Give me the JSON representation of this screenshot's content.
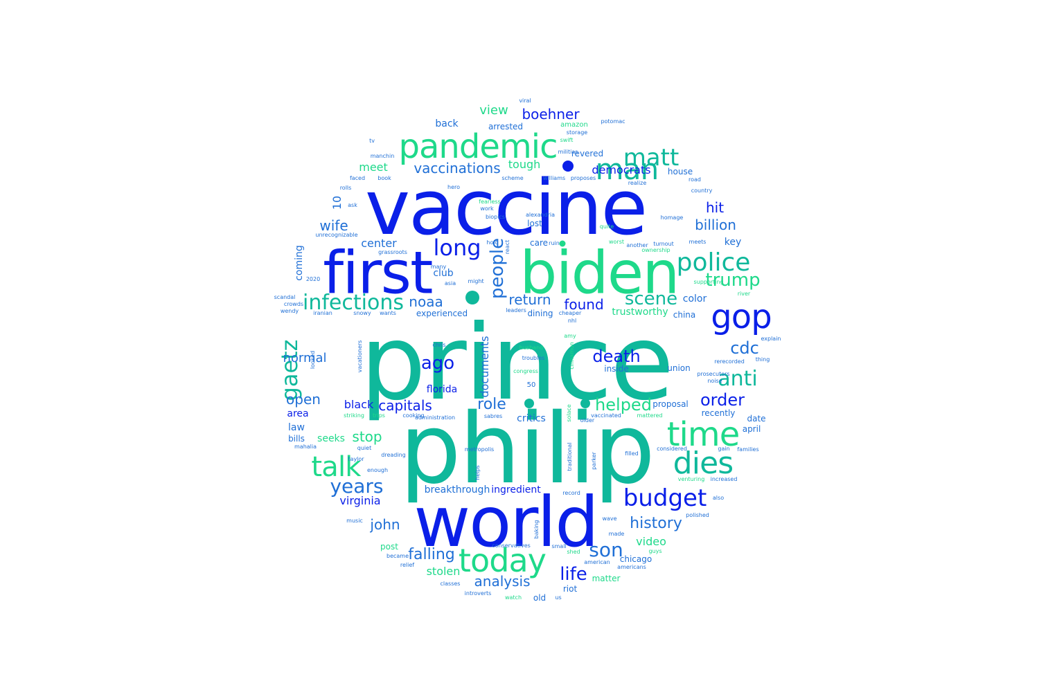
{
  "colors": {
    "blue": "#0a1fe8",
    "teal": "#0fb89b",
    "mid": "#1f6fd6",
    "green": "#1ed98a"
  },
  "words": [
    {
      "text": "prince",
      "color": "teal"
    },
    {
      "text": "philip",
      "color": "teal"
    },
    {
      "text": "vaccine",
      "color": "blue"
    },
    {
      "text": "world",
      "color": "blue"
    },
    {
      "text": "biden",
      "color": "green"
    },
    {
      "text": "first",
      "color": "blue"
    },
    {
      "text": "pandemic",
      "color": "green"
    },
    {
      "text": "gop",
      "color": "blue"
    },
    {
      "text": "time",
      "color": "green"
    },
    {
      "text": "today",
      "color": "green"
    },
    {
      "text": "dies",
      "color": "teal"
    },
    {
      "text": "man",
      "color": "teal"
    },
    {
      "text": "matt",
      "color": "teal"
    },
    {
      "text": "police",
      "color": "teal"
    },
    {
      "text": "talk",
      "color": "green"
    },
    {
      "text": "budget",
      "color": "blue"
    },
    {
      "text": "long",
      "color": "blue"
    },
    {
      "text": "infections",
      "color": "teal"
    },
    {
      "text": "gaetz",
      "color": "teal"
    },
    {
      "text": "anti",
      "color": "teal"
    },
    {
      "text": "trump",
      "color": "green"
    },
    {
      "text": "people",
      "color": "mid"
    },
    {
      "text": "years",
      "color": "mid"
    },
    {
      "text": "son",
      "color": "mid"
    },
    {
      "text": "life",
      "color": "blue"
    },
    {
      "text": "ago",
      "color": "blue"
    },
    {
      "text": "scene",
      "color": "teal"
    },
    {
      "text": "cdc",
      "color": "mid"
    },
    {
      "text": "order",
      "color": "blue"
    },
    {
      "text": "death",
      "color": "blue"
    },
    {
      "text": "vaccinations",
      "color": "mid"
    },
    {
      "text": "boehner",
      "color": "blue"
    },
    {
      "text": "history",
      "color": "mid"
    },
    {
      "text": "helped",
      "color": "green"
    },
    {
      "text": "role",
      "color": "mid"
    },
    {
      "text": "capitals",
      "color": "blue"
    },
    {
      "text": "found",
      "color": "blue"
    },
    {
      "text": "return",
      "color": "mid"
    },
    {
      "text": "noaa",
      "color": "mid"
    },
    {
      "text": "analysis",
      "color": "mid"
    },
    {
      "text": "falling",
      "color": "mid"
    },
    {
      "text": "john",
      "color": "mid"
    },
    {
      "text": "open",
      "color": "mid"
    },
    {
      "text": "normal",
      "color": "mid"
    },
    {
      "text": "billion",
      "color": "mid"
    },
    {
      "text": "hit",
      "color": "blue"
    },
    {
      "text": "wife",
      "color": "mid"
    },
    {
      "text": "view",
      "color": "green"
    },
    {
      "text": "stop",
      "color": "green"
    },
    {
      "text": "documents",
      "color": "mid"
    },
    {
      "text": "democrats",
      "color": "blue"
    },
    {
      "text": "video",
      "color": "green"
    },
    {
      "text": "stolen",
      "color": "green"
    },
    {
      "text": "virginia",
      "color": "blue"
    },
    {
      "text": "black",
      "color": "blue"
    },
    {
      "text": "tough",
      "color": "green"
    },
    {
      "text": "10",
      "color": "mid"
    },
    {
      "text": "meet",
      "color": "green"
    },
    {
      "text": "center",
      "color": "mid"
    },
    {
      "text": "club",
      "color": "mid"
    },
    {
      "text": "coming",
      "color": "mid"
    },
    {
      "text": "area",
      "color": "blue"
    },
    {
      "text": "law",
      "color": "mid"
    },
    {
      "text": "seeks",
      "color": "green"
    },
    {
      "text": "florida",
      "color": "blue"
    },
    {
      "text": "breakthrough",
      "color": "mid"
    },
    {
      "text": "ingredient",
      "color": "blue"
    },
    {
      "text": "inside",
      "color": "mid"
    },
    {
      "text": "union",
      "color": "mid"
    },
    {
      "text": "proposal",
      "color": "mid"
    },
    {
      "text": "recently",
      "color": "mid"
    },
    {
      "text": "critics",
      "color": "mid"
    },
    {
      "text": "color",
      "color": "mid"
    },
    {
      "text": "key",
      "color": "mid"
    },
    {
      "text": "back",
      "color": "mid"
    },
    {
      "text": "house",
      "color": "mid"
    },
    {
      "text": "arrested",
      "color": "mid"
    },
    {
      "text": "revered",
      "color": "mid"
    },
    {
      "text": "experienced",
      "color": "mid"
    },
    {
      "text": "dining",
      "color": "mid"
    },
    {
      "text": "trustworthy",
      "color": "green"
    },
    {
      "text": "lost",
      "color": "mid"
    },
    {
      "text": "care",
      "color": "mid"
    },
    {
      "text": "old",
      "color": "mid"
    },
    {
      "text": "chicago",
      "color": "mid"
    },
    {
      "text": "riot",
      "color": "mid"
    },
    {
      "text": "matter",
      "color": "green"
    },
    {
      "text": "china",
      "color": "mid"
    },
    {
      "text": "april",
      "color": "mid"
    },
    {
      "text": "date",
      "color": "mid"
    },
    {
      "text": "bills",
      "color": "mid"
    },
    {
      "text": "post",
      "color": "green"
    },
    {
      "text": "amazon",
      "color": "green"
    },
    {
      "text": "50",
      "color": "mid"
    },
    {
      "text": "alexandria",
      "color": "mid"
    },
    {
      "text": "biopics",
      "color": "mid"
    },
    {
      "text": "potomac",
      "color": "mid"
    },
    {
      "text": "viral",
      "color": "mid"
    },
    {
      "text": "storage",
      "color": "mid"
    },
    {
      "text": "swift",
      "color": "green"
    },
    {
      "text": "militias",
      "color": "mid"
    },
    {
      "text": "manchin",
      "color": "mid"
    },
    {
      "text": "book",
      "color": "mid"
    },
    {
      "text": "faced",
      "color": "mid"
    },
    {
      "text": "tv",
      "color": "mid"
    },
    {
      "text": "rolls",
      "color": "mid"
    },
    {
      "text": "hero",
      "color": "mid"
    },
    {
      "text": "scheme",
      "color": "mid"
    },
    {
      "text": "williams",
      "color": "mid"
    },
    {
      "text": "proposes",
      "color": "mid"
    },
    {
      "text": "realize",
      "color": "mid"
    },
    {
      "text": "road",
      "color": "mid"
    },
    {
      "text": "country",
      "color": "mid"
    },
    {
      "text": "fearless",
      "color": "green"
    },
    {
      "text": "work",
      "color": "mid"
    },
    {
      "text": "ask",
      "color": "mid"
    },
    {
      "text": "quite",
      "color": "green"
    },
    {
      "text": "homage",
      "color": "mid"
    },
    {
      "text": "unrecognizable",
      "color": "mid"
    },
    {
      "text": "hold",
      "color": "mid"
    },
    {
      "text": "ruin",
      "color": "mid"
    },
    {
      "text": "worst",
      "color": "green"
    },
    {
      "text": "another",
      "color": "mid"
    },
    {
      "text": "turnout",
      "color": "mid"
    },
    {
      "text": "meets",
      "color": "mid"
    },
    {
      "text": "ownership",
      "color": "green"
    },
    {
      "text": "react",
      "color": "mid"
    },
    {
      "text": "grassroots",
      "color": "mid"
    },
    {
      "text": "many",
      "color": "mid"
    },
    {
      "text": "2020",
      "color": "mid"
    },
    {
      "text": "asia",
      "color": "mid"
    },
    {
      "text": "might",
      "color": "mid"
    },
    {
      "text": "supporting",
      "color": "green"
    },
    {
      "text": "river",
      "color": "green"
    },
    {
      "text": "scandal",
      "color": "mid"
    },
    {
      "text": "crowds",
      "color": "mid"
    },
    {
      "text": "wendy",
      "color": "mid"
    },
    {
      "text": "iranian",
      "color": "mid"
    },
    {
      "text": "snowy",
      "color": "mid"
    },
    {
      "text": "wants",
      "color": "mid"
    },
    {
      "text": "leaders",
      "color": "mid"
    },
    {
      "text": "cheaper",
      "color": "mid"
    },
    {
      "text": "nhl",
      "color": "mid"
    },
    {
      "text": "amy",
      "color": "green"
    },
    {
      "text": "explain",
      "color": "mid"
    },
    {
      "text": "chris",
      "color": "mid"
    },
    {
      "text": "husband",
      "color": "green"
    },
    {
      "text": "troubles",
      "color": "mid"
    },
    {
      "text": "cinnamon",
      "color": "green"
    },
    {
      "text": "prosecutors",
      "color": "mid"
    },
    {
      "text": "rerecorded",
      "color": "mid"
    },
    {
      "text": "thing",
      "color": "mid"
    },
    {
      "text": "noise",
      "color": "mid"
    },
    {
      "text": "congress",
      "color": "green"
    },
    {
      "text": "vacationers",
      "color": "mid"
    },
    {
      "text": "looked",
      "color": "mid"
    },
    {
      "text": "striking",
      "color": "green"
    },
    {
      "text": "trips",
      "color": "green"
    },
    {
      "text": "cooking",
      "color": "mid"
    },
    {
      "text": "administration",
      "color": "mid"
    },
    {
      "text": "sabres",
      "color": "mid"
    },
    {
      "text": "solace",
      "color": "green"
    },
    {
      "text": "older",
      "color": "mid"
    },
    {
      "text": "vaccinated",
      "color": "mid"
    },
    {
      "text": "mattered",
      "color": "green"
    },
    {
      "text": "mahalia",
      "color": "mid"
    },
    {
      "text": "quiet",
      "color": "mid"
    },
    {
      "text": "metropolis",
      "color": "mid"
    },
    {
      "text": "traditional",
      "color": "mid"
    },
    {
      "text": "parker",
      "color": "mid"
    },
    {
      "text": "filled",
      "color": "mid"
    },
    {
      "text": "considered",
      "color": "mid"
    },
    {
      "text": "gain",
      "color": "mid"
    },
    {
      "text": "families",
      "color": "mid"
    },
    {
      "text": "taylor",
      "color": "mid"
    },
    {
      "text": "dreading",
      "color": "mid"
    },
    {
      "text": "helps",
      "color": "mid"
    },
    {
      "text": "enough",
      "color": "mid"
    },
    {
      "text": "venturing",
      "color": "green"
    },
    {
      "text": "increased",
      "color": "mid"
    },
    {
      "text": "record",
      "color": "mid"
    },
    {
      "text": "music",
      "color": "mid"
    },
    {
      "text": "baking",
      "color": "mid"
    },
    {
      "text": "wave",
      "color": "mid"
    },
    {
      "text": "also",
      "color": "mid"
    },
    {
      "text": "polished",
      "color": "mid"
    },
    {
      "text": "made",
      "color": "mid"
    },
    {
      "text": "conservatives",
      "color": "mid"
    },
    {
      "text": "small",
      "color": "mid"
    },
    {
      "text": "shed",
      "color": "green"
    },
    {
      "text": "guys",
      "color": "green"
    },
    {
      "text": "became",
      "color": "mid"
    },
    {
      "text": "relief",
      "color": "mid"
    },
    {
      "text": "american",
      "color": "mid"
    },
    {
      "text": "americans",
      "color": "mid"
    },
    {
      "text": "classes",
      "color": "mid"
    },
    {
      "text": "introverts",
      "color": "mid"
    },
    {
      "text": "watch",
      "color": "green"
    },
    {
      "text": "us",
      "color": "mid"
    }
  ]
}
